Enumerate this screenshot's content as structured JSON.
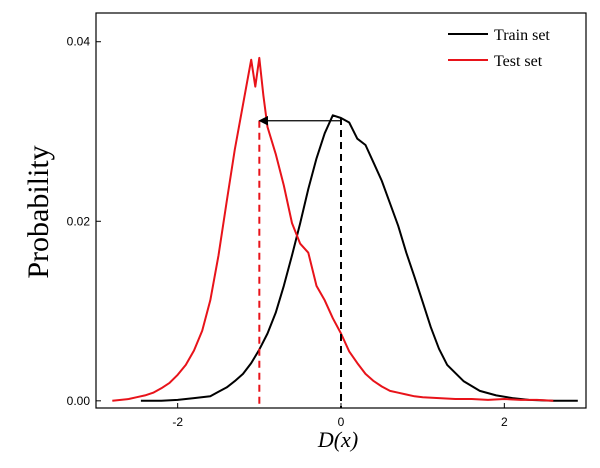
{
  "chart_data": {
    "type": "line",
    "title": "",
    "xlabel": "D(x)",
    "ylabel": "Probability",
    "xlim": [
      -3.0,
      3.0
    ],
    "ylim": [
      -0.0008,
      0.0432
    ],
    "x_ticks": [
      -2,
      0,
      2
    ],
    "x_tick_labels": [
      "-2",
      "0",
      "2"
    ],
    "y_ticks": [
      0.0,
      0.02,
      0.04
    ],
    "y_tick_labels": [
      "0.00",
      "0.02",
      "0.04"
    ],
    "grid": false,
    "legend_position": "top-right",
    "series": [
      {
        "name": "Train set",
        "color": "#000000",
        "x": [
          -2.45,
          -2.2,
          -2.0,
          -1.8,
          -1.6,
          -1.5,
          -1.4,
          -1.3,
          -1.2,
          -1.1,
          -1.0,
          -0.9,
          -0.8,
          -0.7,
          -0.6,
          -0.5,
          -0.4,
          -0.3,
          -0.2,
          -0.1,
          0.0,
          0.1,
          0.2,
          0.3,
          0.4,
          0.5,
          0.6,
          0.7,
          0.8,
          0.9,
          1.0,
          1.1,
          1.2,
          1.3,
          1.5,
          1.7,
          1.9,
          2.1,
          2.3,
          2.6,
          2.9
        ],
        "y": [
          0.0,
          0.0,
          0.0001,
          0.0003,
          0.0005,
          0.001,
          0.0015,
          0.0022,
          0.003,
          0.0042,
          0.0057,
          0.0075,
          0.0098,
          0.0128,
          0.0162,
          0.0198,
          0.0236,
          0.027,
          0.0298,
          0.0318,
          0.0315,
          0.031,
          0.0292,
          0.0285,
          0.0265,
          0.0245,
          0.022,
          0.0195,
          0.0165,
          0.0138,
          0.011,
          0.0082,
          0.0058,
          0.004,
          0.0022,
          0.0011,
          0.0006,
          0.0003,
          0.0001,
          0.0,
          0.0
        ]
      },
      {
        "name": "Test set",
        "color": "#e8131a",
        "x": [
          -2.8,
          -2.6,
          -2.5,
          -2.4,
          -2.3,
          -2.2,
          -2.1,
          -2.0,
          -1.9,
          -1.8,
          -1.7,
          -1.6,
          -1.5,
          -1.4,
          -1.3,
          -1.2,
          -1.15,
          -1.1,
          -1.05,
          -1.0,
          -0.95,
          -0.9,
          -0.8,
          -0.7,
          -0.6,
          -0.5,
          -0.4,
          -0.3,
          -0.2,
          -0.1,
          0.0,
          0.1,
          0.2,
          0.3,
          0.4,
          0.5,
          0.6,
          0.7,
          0.8,
          0.9,
          1.0,
          1.2,
          1.4,
          1.6,
          1.8,
          2.0,
          2.2,
          2.4,
          2.6
        ],
        "y": [
          0.0,
          0.0002,
          0.0004,
          0.0006,
          0.0009,
          0.0014,
          0.002,
          0.0029,
          0.004,
          0.0056,
          0.0078,
          0.0112,
          0.0162,
          0.0222,
          0.028,
          0.033,
          0.0355,
          0.038,
          0.035,
          0.0382,
          0.034,
          0.0305,
          0.0275,
          0.024,
          0.0198,
          0.0175,
          0.0165,
          0.0128,
          0.0112,
          0.0092,
          0.0075,
          0.0055,
          0.0042,
          0.003,
          0.0022,
          0.0016,
          0.0011,
          0.0009,
          0.0007,
          0.0005,
          0.0004,
          0.0003,
          0.0002,
          0.0002,
          0.0001,
          0.0002,
          0.0001,
          0.0001,
          0.0
        ]
      }
    ],
    "annotations": [
      {
        "type": "vline",
        "x": 0.0,
        "y_top": 0.0315,
        "color": "#000000",
        "style": "dashed"
      },
      {
        "type": "vline",
        "x": -1.0,
        "y_top": 0.0312,
        "color": "#e8131a",
        "style": "dashed"
      },
      {
        "type": "arrow",
        "from_x": 0.0,
        "to_x": -1.0,
        "y": 0.0312,
        "color": "#000000"
      }
    ]
  }
}
